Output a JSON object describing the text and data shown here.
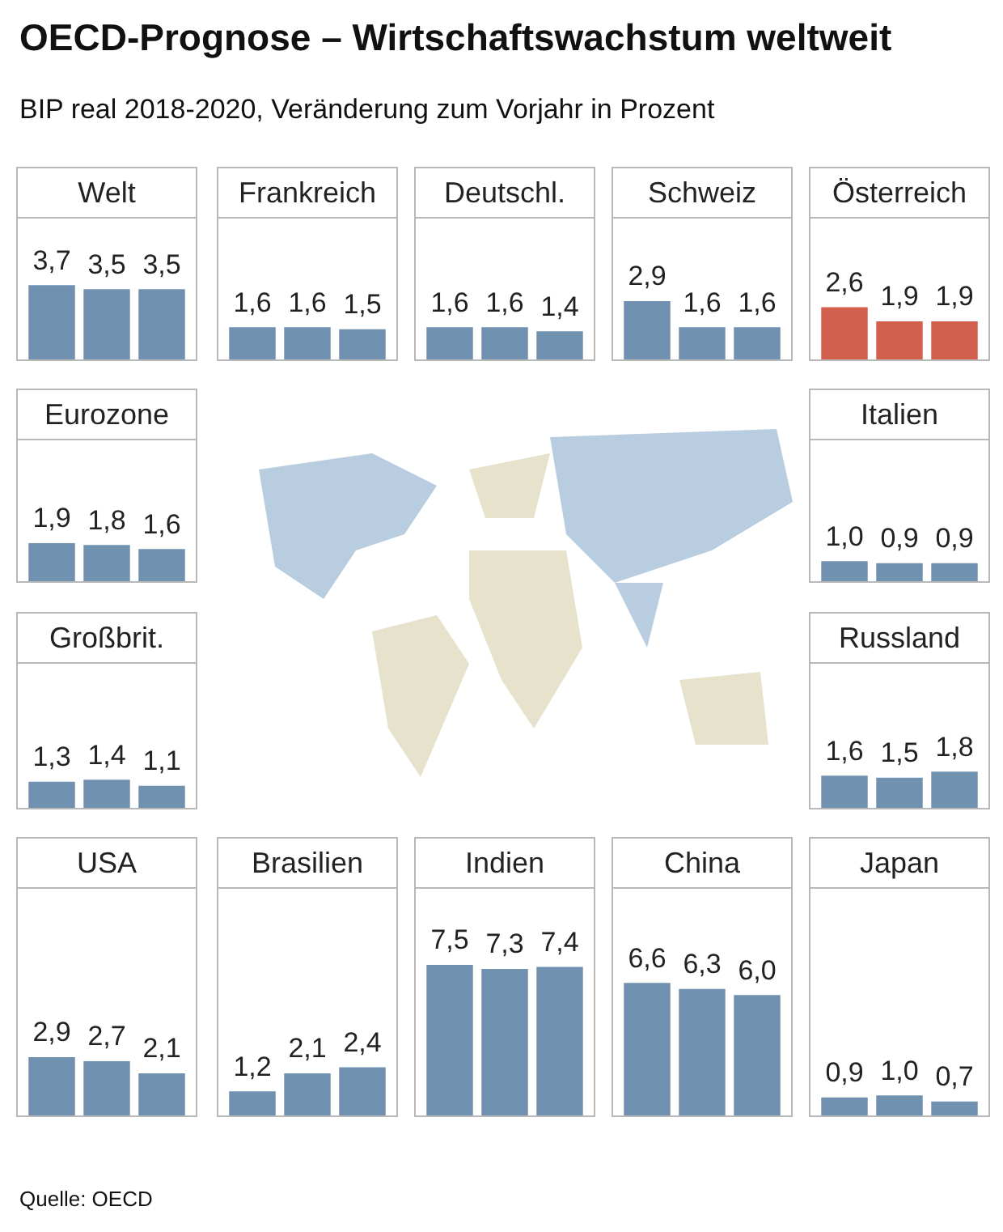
{
  "chart_data": [
    {
      "type": "other",
      "title": "OECD-Prognose – Wirtschaftswachstum weltweit",
      "subtitle": "BIP real 2018-2020, Veränderung zum Vorjahr in Prozent",
      "annotations": [
        "Quelle: OECD"
      ]
    },
    {
      "type": "bar",
      "title": "Welt",
      "categories": [
        null,
        null,
        null
      ],
      "values": [
        3.7,
        3.5,
        3.5
      ],
      "value_labels": [
        "3,7",
        "3,5",
        "3,5"
      ],
      "color": "#7191b1"
    },
    {
      "type": "bar",
      "title": "Frankreich",
      "categories": [
        null,
        null,
        null
      ],
      "values": [
        1.6,
        1.6,
        1.5
      ],
      "value_labels": [
        "1,6",
        "1,6",
        "1,5"
      ],
      "color": "#7191b1"
    },
    {
      "type": "bar",
      "title": "Deutschl.",
      "categories": [
        null,
        null,
        null
      ],
      "values": [
        1.6,
        1.6,
        1.4
      ],
      "value_labels": [
        "1,6",
        "1,6",
        "1,4"
      ],
      "color": "#7191b1"
    },
    {
      "type": "bar",
      "title": "Schweiz",
      "categories": [
        null,
        null,
        null
      ],
      "values": [
        2.9,
        1.6,
        1.6
      ],
      "value_labels": [
        "2,9",
        "1,6",
        "1,6"
      ],
      "color": "#7191b1"
    },
    {
      "type": "bar",
      "title": "Österreich",
      "categories": [
        null,
        null,
        null
      ],
      "values": [
        2.6,
        1.9,
        1.9
      ],
      "value_labels": [
        "2,6",
        "1,9",
        "1,9"
      ],
      "color": "#d2604c"
    },
    {
      "type": "bar",
      "title": "Eurozone",
      "categories": [
        null,
        null,
        null
      ],
      "values": [
        1.9,
        1.8,
        1.6
      ],
      "value_labels": [
        "1,9",
        "1,8",
        "1,6"
      ],
      "color": "#7191b1"
    },
    {
      "type": "bar",
      "title": "Italien",
      "categories": [
        null,
        null,
        null
      ],
      "values": [
        1.0,
        0.9,
        0.9
      ],
      "value_labels": [
        "1,0",
        "0,9",
        "0,9"
      ],
      "color": "#7191b1"
    },
    {
      "type": "bar",
      "title": "Großbrit.",
      "categories": [
        null,
        null,
        null
      ],
      "values": [
        1.3,
        1.4,
        1.1
      ],
      "value_labels": [
        "1,3",
        "1,4",
        "1,1"
      ],
      "color": "#7191b1"
    },
    {
      "type": "bar",
      "title": "Russland",
      "categories": [
        null,
        null,
        null
      ],
      "values": [
        1.6,
        1.5,
        1.8
      ],
      "value_labels": [
        "1,6",
        "1,5",
        "1,8"
      ],
      "color": "#7191b1"
    },
    {
      "type": "bar",
      "title": "USA",
      "categories": [
        null,
        null,
        null
      ],
      "values": [
        2.9,
        2.7,
        2.1
      ],
      "value_labels": [
        "2,9",
        "2,7",
        "2,1"
      ],
      "color": "#7191b1"
    },
    {
      "type": "bar",
      "title": "Brasilien",
      "categories": [
        null,
        null,
        null
      ],
      "values": [
        1.2,
        2.1,
        2.4
      ],
      "value_labels": [
        "1,2",
        "2,1",
        "2,4"
      ],
      "color": "#7191b1"
    },
    {
      "type": "bar",
      "title": "Indien",
      "categories": [
        null,
        null,
        null
      ],
      "values": [
        7.5,
        7.3,
        7.4
      ],
      "value_labels": [
        "7,5",
        "7,3",
        "7,4"
      ],
      "color": "#7191b1"
    },
    {
      "type": "bar",
      "title": "China",
      "categories": [
        null,
        null,
        null
      ],
      "values": [
        6.6,
        6.3,
        6.0
      ],
      "value_labels": [
        "6,6",
        "6,3",
        "6,0"
      ],
      "color": "#7191b1"
    },
    {
      "type": "bar",
      "title": "Japan",
      "categories": [
        null,
        null,
        null
      ],
      "values": [
        0.9,
        1.0,
        0.7
      ],
      "value_labels": [
        "0,9",
        "1,0",
        "0,7"
      ],
      "color": "#7191b1"
    }
  ]
}
